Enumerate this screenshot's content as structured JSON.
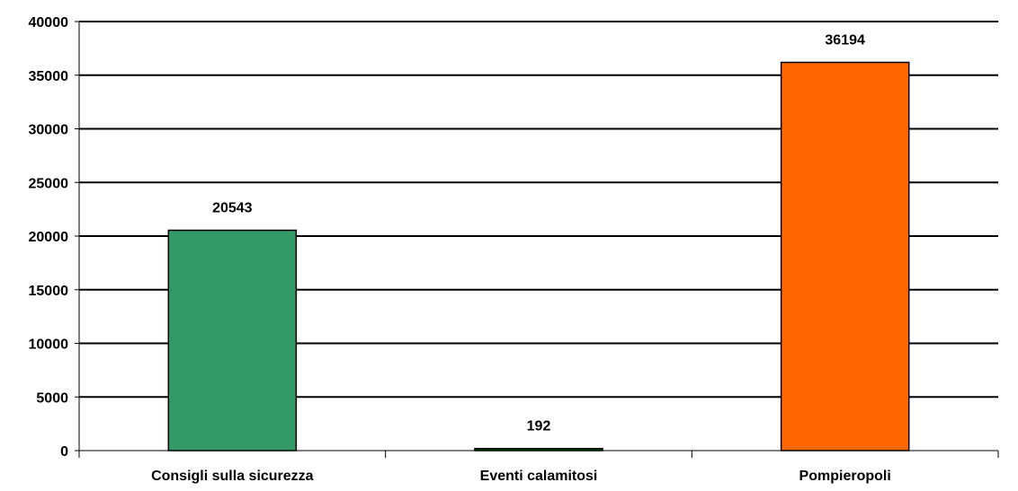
{
  "chart_data": {
    "type": "bar",
    "categories": [
      "Consigli sulla sicurezza",
      "Eventi calamitosi",
      "Pompieropoli"
    ],
    "values": [
      20543,
      192,
      36194
    ],
    "data_labels": [
      "20543",
      "192",
      "36194"
    ],
    "bar_colors": [
      "#339966",
      "#006600",
      "#ff6600"
    ],
    "ylim": [
      0,
      40000
    ],
    "yticks": [
      0,
      5000,
      10000,
      15000,
      20000,
      25000,
      30000,
      35000,
      40000
    ],
    "ytick_labels": [
      "0",
      "5000",
      "10000",
      "15000",
      "20000",
      "25000",
      "30000",
      "35000",
      "40000"
    ],
    "grid": true,
    "legend": false,
    "title": "",
    "xlabel": "",
    "ylabel": ""
  }
}
